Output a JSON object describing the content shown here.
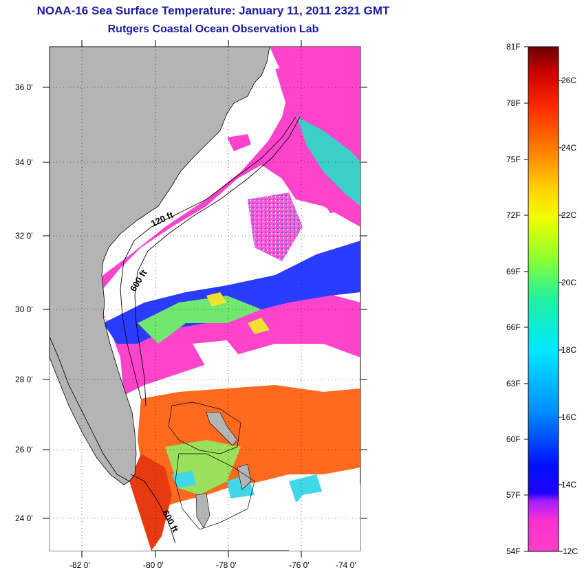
{
  "title": "NOAA-16 Sea Surface Temperature:  January 11, 2011 2321 GMT",
  "subtitle": "Rutgers Coastal Ocean Observation Lab",
  "map": {
    "lat_labels": [
      "36 0'",
      "34 0'",
      "32 0'",
      "30 0'",
      "28 0'",
      "26 0'",
      "24 0'"
    ],
    "lon_labels": [
      "-82 0'",
      "-80 0'",
      "-78 0'",
      "-76 0'",
      "-74 0'"
    ],
    "contour_labels": [
      "120 ft",
      "600 ft",
      "600 ft"
    ],
    "colors": {
      "land": "#b4b4b4",
      "cloud": "#ffffff",
      "cold": "#ff44cc",
      "warm": "#ff5a1e"
    }
  },
  "colorbar": {
    "fahrenheit_labels": [
      "81F",
      "78F",
      "75F",
      "72F",
      "69F",
      "66F",
      "63F",
      "60F",
      "57F",
      "54F"
    ],
    "celsius_labels": [
      "26C",
      "24C",
      "22C",
      "20C",
      "18C",
      "16C",
      "14C",
      "12C"
    ],
    "stops": [
      "#6a0000",
      "#c80000",
      "#ff2a00",
      "#ff7a00",
      "#ffd000",
      "#f0ff00",
      "#8cff30",
      "#20f0a0",
      "#00e8ff",
      "#0090ff",
      "#0010ff",
      "#2000ff",
      "#a020ff",
      "#ff30d0",
      "#ff40c8"
    ]
  }
}
